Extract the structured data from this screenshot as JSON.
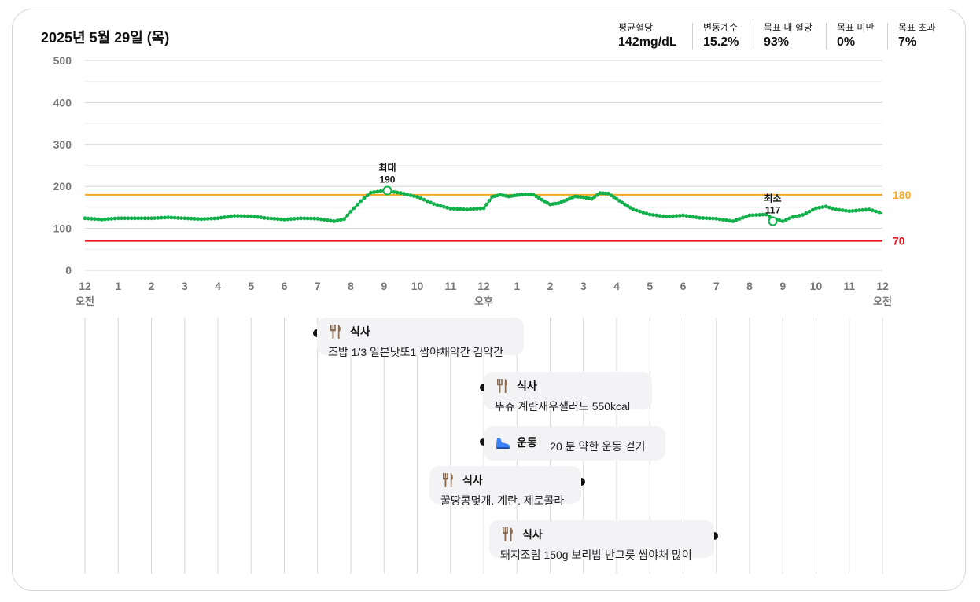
{
  "header": {
    "date": "2025년 5월 29일 (목)"
  },
  "stats": [
    {
      "label": "평균혈당",
      "value": "142mg/dL"
    },
    {
      "label": "변동계수",
      "value": "15.2%"
    },
    {
      "label": "목표 내 혈당",
      "value": "93%"
    },
    {
      "label": "목표 미만",
      "value": "0%"
    },
    {
      "label": "목표 초과",
      "value": "7%"
    }
  ],
  "chart_data": {
    "type": "line",
    "y_ticks": [
      "500",
      "400",
      "300",
      "200",
      "100",
      "0"
    ],
    "ylim": [
      0,
      500
    ],
    "x_ticks": [
      "12",
      "1",
      "2",
      "3",
      "4",
      "5",
      "6",
      "7",
      "8",
      "9",
      "10",
      "11",
      "12",
      "1",
      "2",
      "3",
      "4",
      "5",
      "6",
      "7",
      "8",
      "9",
      "10",
      "11",
      "12"
    ],
    "x_period_labels": {
      "start": "오전",
      "noon": "오후",
      "end": "오전"
    },
    "xlim_hours": [
      0,
      24
    ],
    "thresholds": [
      {
        "label": "180",
        "value": 180,
        "color": "#f5a623"
      },
      {
        "label": "70",
        "value": 70,
        "color": "#e8141e"
      }
    ],
    "series_color": "#12b04a",
    "x": [
      0,
      0.5,
      1,
      1.5,
      2,
      2.5,
      3,
      3.5,
      4,
      4.5,
      5,
      5.5,
      6,
      6.5,
      7,
      7.5,
      7.8,
      8,
      8.3,
      8.6,
      9,
      9.2,
      9.5,
      10,
      10.5,
      11,
      11.5,
      12,
      12.25,
      12.5,
      12.75,
      13,
      13.25,
      13.5,
      13.75,
      14,
      14.25,
      14.5,
      14.75,
      15,
      15.25,
      15.5,
      15.75,
      16,
      16.25,
      16.5,
      17,
      17.5,
      18,
      18.5,
      19,
      19.5,
      20,
      20.5,
      20.7,
      21,
      21.3,
      21.6,
      22,
      22.3,
      22.6,
      23,
      23.3,
      23.6,
      24
    ],
    "values": [
      124,
      121,
      124,
      124,
      124,
      126,
      124,
      122,
      124,
      130,
      129,
      124,
      121,
      124,
      123,
      117,
      122,
      140,
      165,
      185,
      190,
      188,
      184,
      175,
      158,
      147,
      145,
      148,
      175,
      180,
      176,
      179,
      181,
      180,
      168,
      157,
      160,
      168,
      176,
      174,
      170,
      184,
      183,
      170,
      157,
      145,
      133,
      128,
      131,
      125,
      123,
      117,
      131,
      133,
      124,
      117,
      127,
      132,
      148,
      152,
      145,
      141,
      143,
      145,
      136
    ],
    "annotations": [
      {
        "label": "최대",
        "value_text": "190",
        "x": 9.1,
        "y": 190
      },
      {
        "label": "최소",
        "value_text": "117",
        "x": 20.7,
        "y": 117
      }
    ]
  },
  "events": [
    {
      "kind": "식사",
      "detail": "조밥 1/3 일본낫또1 쌈야채약간 김약간",
      "icon": "fork-knife-icon",
      "time_hours": 7.0
    },
    {
      "kind": "식사",
      "detail": "뚜쥬 계란새우샐러드 550kcal",
      "icon": "fork-knife-icon",
      "time_hours": 12.0
    },
    {
      "kind": "운동",
      "detail": "20 분 약한 운동 걷기",
      "icon": "shoe-icon",
      "time_hours": 12.0
    },
    {
      "kind": "식사",
      "detail": "꿀땅콩몇개. 계란. 제로콜라",
      "icon": "fork-knife-icon",
      "time_hours": 15.0
    },
    {
      "kind": "식사",
      "detail": "돼지조림 150g 보리밥 반그릇 쌈야채 많이",
      "icon": "fork-knife-icon",
      "time_hours": 19.0
    }
  ]
}
